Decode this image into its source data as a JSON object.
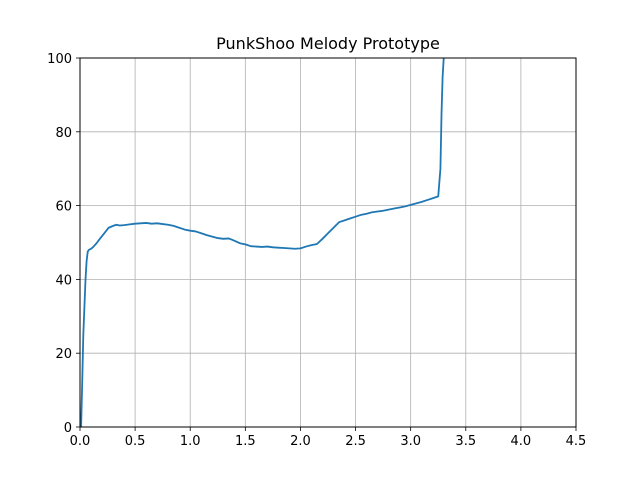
{
  "chart_data": {
    "type": "line",
    "title": "PunkShoo Melody Prototype",
    "xlabel": "",
    "ylabel": "",
    "xlim": [
      0,
      4.5
    ],
    "ylim": [
      0,
      100
    ],
    "xticks": [
      0.0,
      0.5,
      1.0,
      1.5,
      2.0,
      2.5,
      3.0,
      3.5,
      4.0,
      4.5
    ],
    "xtick_labels": [
      "0.0",
      "0.5",
      "1.0",
      "1.5",
      "2.0",
      "2.5",
      "3.0",
      "3.5",
      "4.0",
      "4.5"
    ],
    "yticks": [
      0,
      20,
      40,
      60,
      80,
      100
    ],
    "ytick_labels": [
      "0",
      "20",
      "40",
      "60",
      "80",
      "100"
    ],
    "grid": true,
    "color": "#1f77b4",
    "series": [
      {
        "x": [
          0.01,
          0.02,
          0.03,
          0.05,
          0.06,
          0.07,
          0.08,
          0.1,
          0.12,
          0.15,
          0.18,
          0.22,
          0.26,
          0.3,
          0.33,
          0.36,
          0.4,
          0.45,
          0.5,
          0.55,
          0.6,
          0.65,
          0.7,
          0.75,
          0.8,
          0.85,
          0.9,
          0.95,
          1.0,
          1.05,
          1.1,
          1.15,
          1.2,
          1.25,
          1.3,
          1.35,
          1.4,
          1.45,
          1.5,
          1.55,
          1.6,
          1.65,
          1.7,
          1.75,
          1.8,
          1.85,
          1.9,
          1.95,
          2.0,
          2.05,
          2.1,
          2.15,
          2.2,
          2.25,
          2.3,
          2.35,
          2.4,
          2.45,
          2.5,
          2.55,
          2.6,
          2.65,
          2.7,
          2.75,
          2.8,
          2.85,
          2.9,
          2.95,
          3.0,
          3.05,
          3.1,
          3.15,
          3.2,
          3.25,
          3.27,
          3.28,
          3.29,
          3.3,
          3.31
        ],
        "y": [
          0,
          12,
          25,
          40,
          45,
          47.5,
          48,
          48.3,
          48.8,
          49.8,
          51,
          52.5,
          54,
          54.5,
          54.8,
          54.6,
          54.7,
          54.9,
          55.1,
          55.2,
          55.3,
          55.1,
          55.2,
          55.0,
          54.8,
          54.5,
          54.0,
          53.5,
          53.2,
          53.0,
          52.5,
          52.0,
          51.6,
          51.2,
          51.0,
          51.1,
          50.5,
          49.8,
          49.5,
          49.0,
          48.9,
          48.8,
          48.9,
          48.7,
          48.6,
          48.5,
          48.4,
          48.3,
          48.4,
          48.9,
          49.3,
          49.6,
          51.0,
          52.5,
          54.0,
          55.5,
          56.0,
          56.5,
          57.0,
          57.5,
          57.8,
          58.2,
          58.4,
          58.6,
          58.9,
          59.2,
          59.5,
          59.8,
          60.2,
          60.6,
          61.0,
          61.5,
          62.0,
          62.5,
          70,
          85,
          95,
          100,
          104
        ]
      }
    ]
  }
}
